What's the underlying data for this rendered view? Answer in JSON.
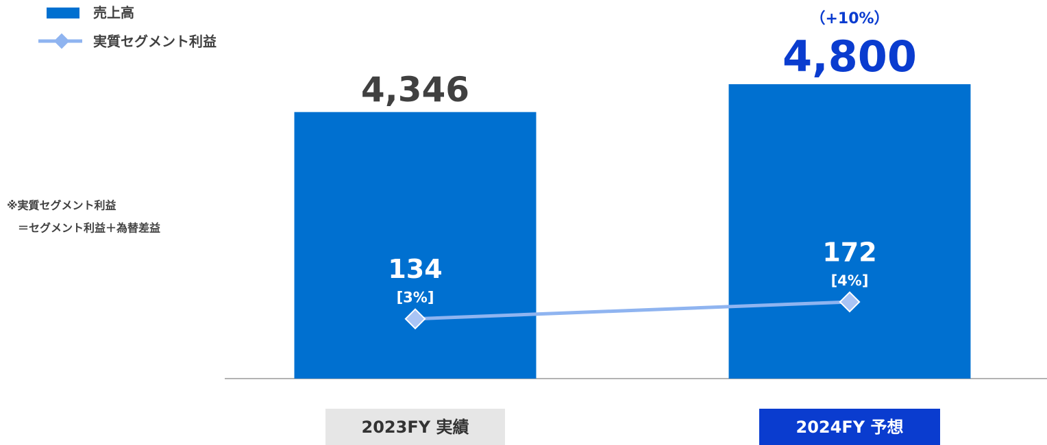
{
  "chart_data": {
    "type": "bar-line",
    "categories": [
      "2023FY 実績",
      "2024FY 予想"
    ],
    "category_box_colors": [
      "#e6e6e6",
      "#0a3ccf"
    ],
    "category_text_colors": [
      "#333333",
      "#ffffff"
    ],
    "series": [
      {
        "name": "売上高",
        "color": "#0070d0",
        "type": "bar",
        "values": [
          4346,
          4800
        ],
        "value_labels": [
          "4,346",
          "4,800"
        ],
        "value_label_colors": [
          "#404040",
          "#0a3ccf"
        ]
      },
      {
        "name": "実質セグメント利益",
        "color": "#8fb4f0",
        "type": "line",
        "values": [
          134,
          172
        ],
        "margin_labels": [
          "[3%]",
          "[4%]"
        ]
      }
    ],
    "annotations": [
      {
        "category": 1,
        "text": "（+10%）"
      }
    ],
    "note": [
      "※実質セグメント利益",
      "　＝セグメント利益＋為替差益"
    ]
  }
}
